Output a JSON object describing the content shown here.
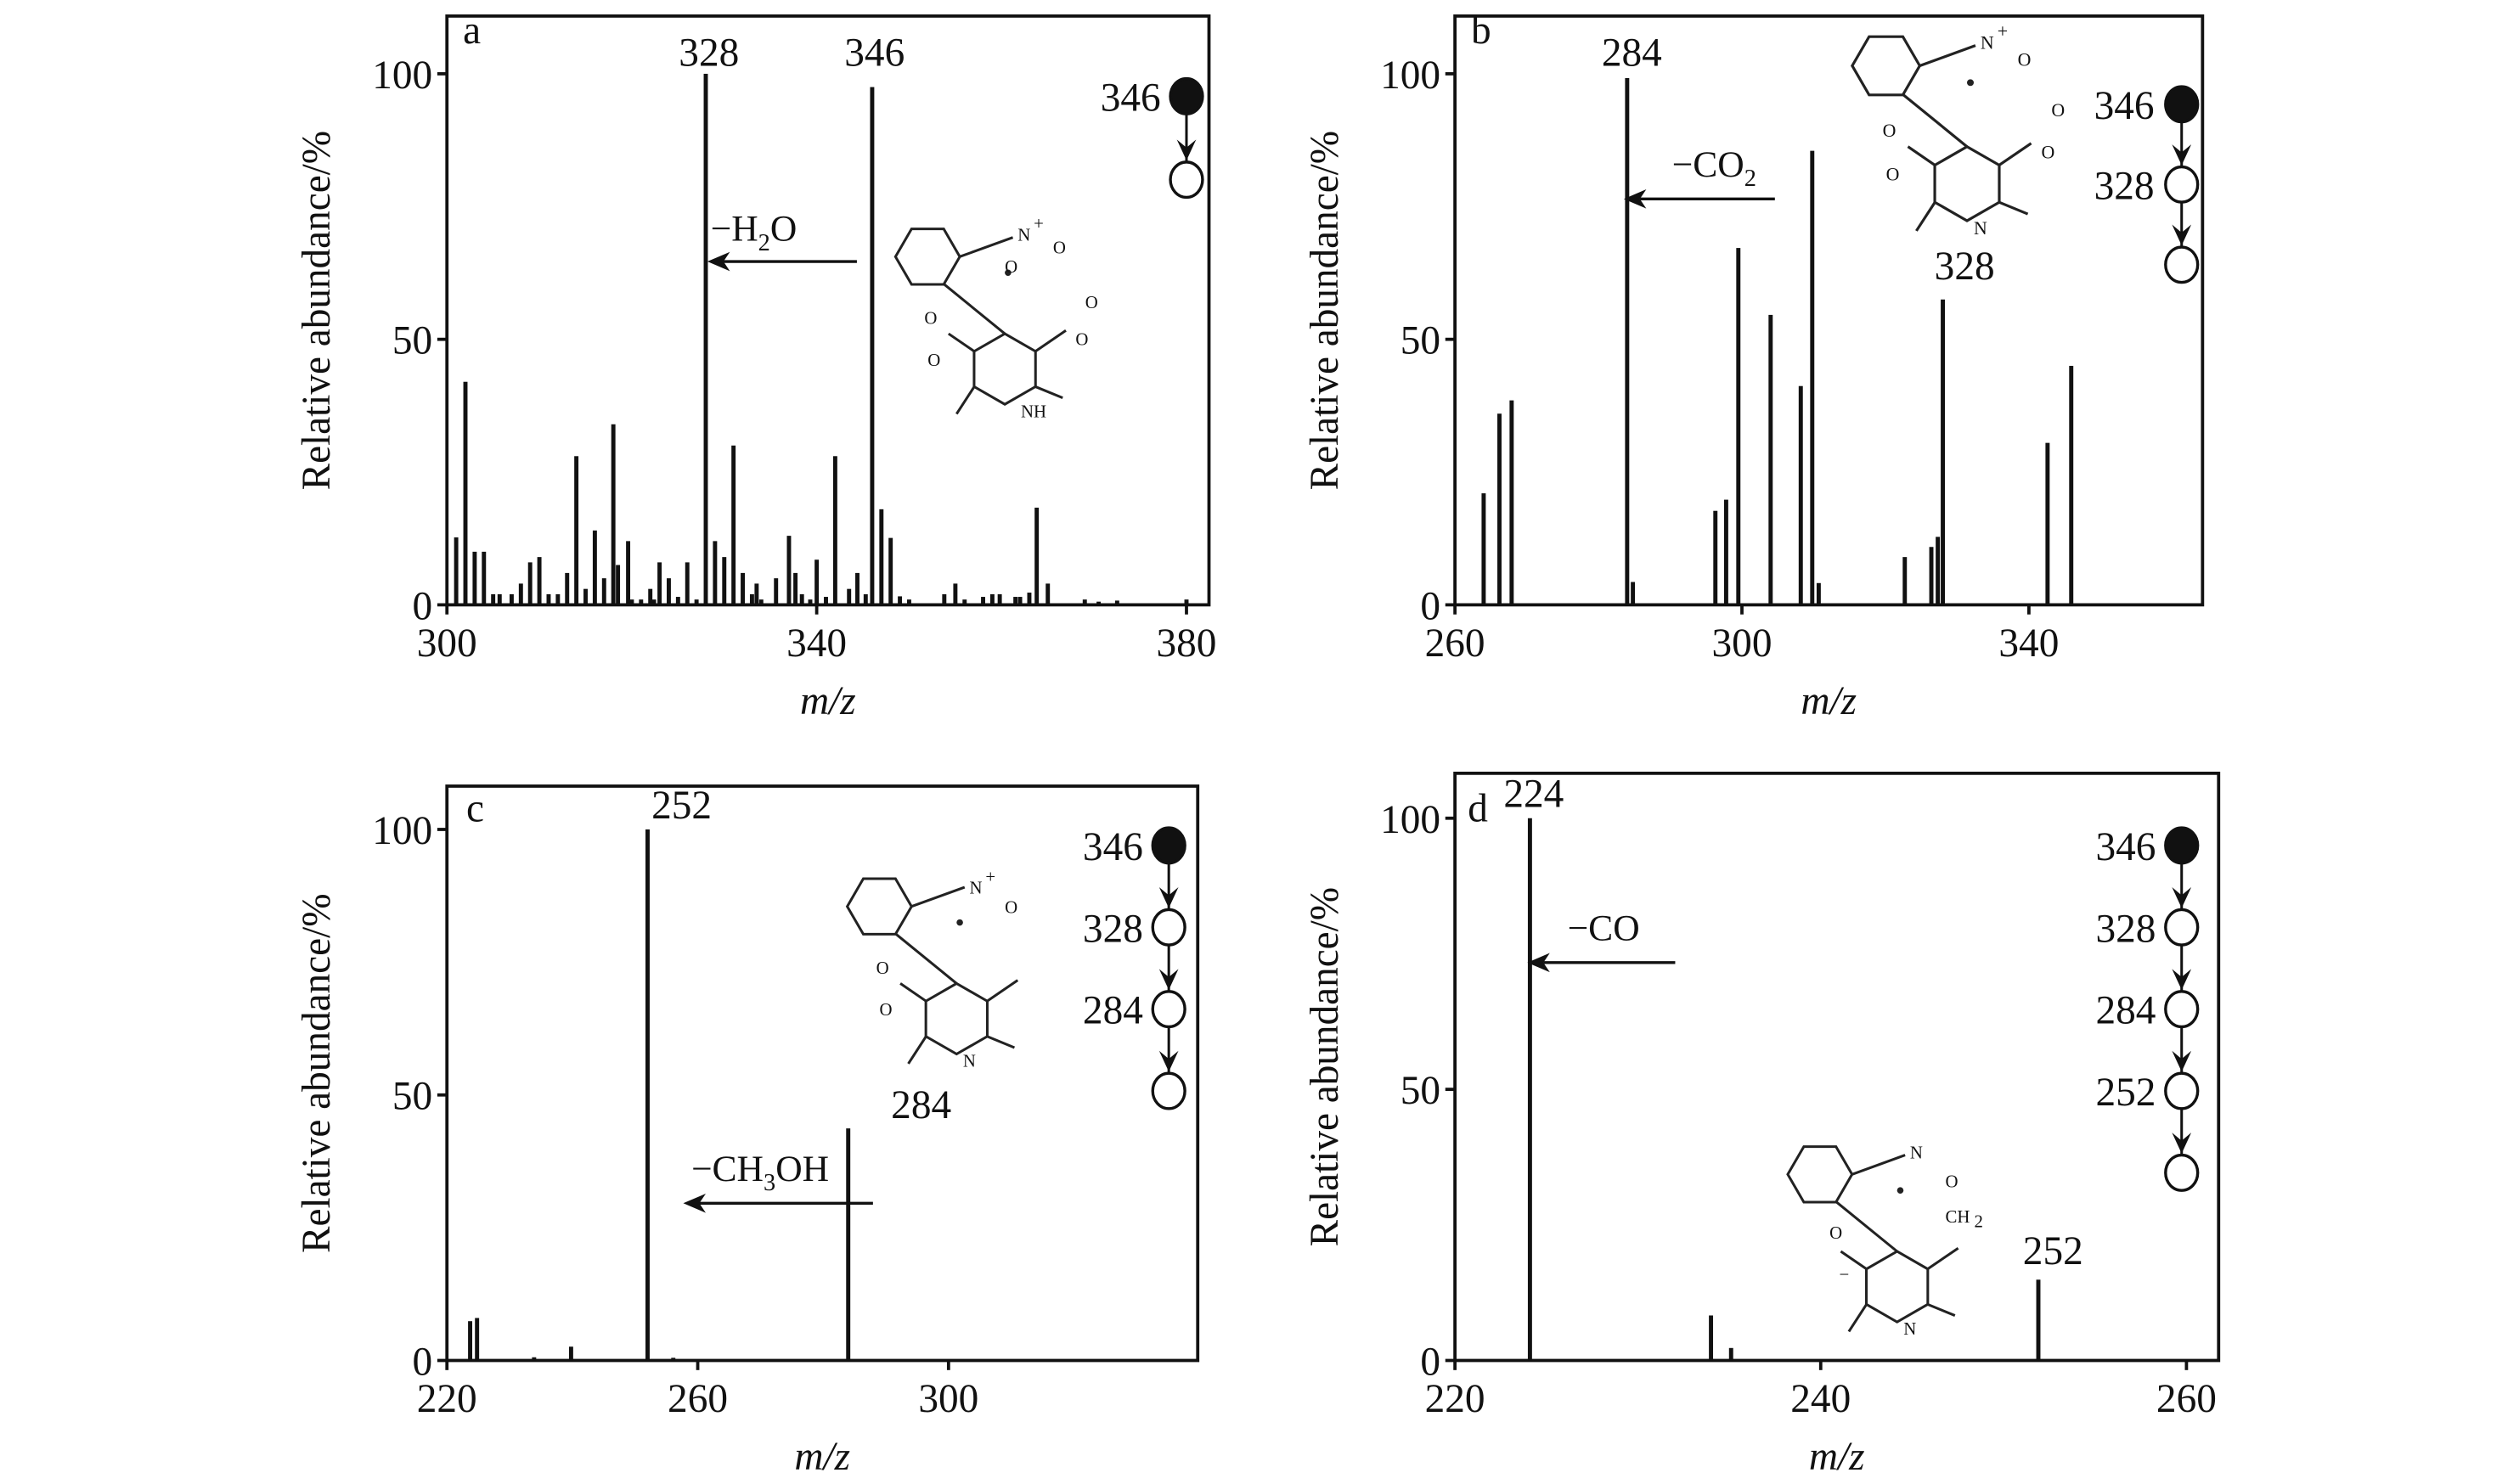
{
  "figure": {
    "ylabel": "Relative abundance/%",
    "xlabel": "m/z",
    "colors": {
      "ink": "#111111",
      "background": "#ffffff"
    }
  },
  "chart_data": [
    {
      "type": "bar",
      "panel": "a",
      "xlim": [
        300,
        382
      ],
      "ylim": [
        0,
        110
      ],
      "xticks": [
        "300",
        "340",
        "380"
      ],
      "xtick_values": [
        300,
        340,
        380
      ],
      "yticks": [
        "0",
        "50",
        "100"
      ],
      "ytick_values": [
        0,
        50,
        100
      ],
      "peaks": [
        [
          301,
          12.7
        ],
        [
          302,
          42
        ],
        [
          303,
          10
        ],
        [
          304,
          10
        ],
        [
          305,
          2
        ],
        [
          305.7,
          2
        ],
        [
          307,
          2
        ],
        [
          308,
          4
        ],
        [
          309,
          8
        ],
        [
          310,
          9
        ],
        [
          311,
          2
        ],
        [
          312,
          2
        ],
        [
          313,
          6
        ],
        [
          314,
          28
        ],
        [
          315,
          3
        ],
        [
          316,
          14
        ],
        [
          317,
          5
        ],
        [
          318,
          34
        ],
        [
          318.5,
          7.5
        ],
        [
          319.6,
          12
        ],
        [
          320,
          1
        ],
        [
          321,
          1
        ],
        [
          322,
          3
        ],
        [
          322.4,
          1
        ],
        [
          323,
          8
        ],
        [
          324,
          5
        ],
        [
          325,
          1.5
        ],
        [
          326,
          8
        ],
        [
          327,
          1
        ],
        [
          328,
          100
        ],
        [
          329,
          12
        ],
        [
          330,
          9
        ],
        [
          331,
          30
        ],
        [
          332,
          6
        ],
        [
          333,
          2
        ],
        [
          333.5,
          4
        ],
        [
          334,
          1
        ],
        [
          335.6,
          5
        ],
        [
          337,
          13
        ],
        [
          337.7,
          6
        ],
        [
          338.4,
          2
        ],
        [
          339.3,
          1
        ],
        [
          340,
          8.5
        ],
        [
          341,
          1.5
        ],
        [
          342,
          28
        ],
        [
          343.5,
          3
        ],
        [
          344.4,
          6
        ],
        [
          345.3,
          2
        ],
        [
          346,
          97.5
        ],
        [
          347,
          18
        ],
        [
          348,
          12.6
        ],
        [
          349,
          1.6
        ],
        [
          350,
          1
        ],
        [
          353.8,
          2
        ],
        [
          355,
          4
        ],
        [
          356,
          1
        ],
        [
          358,
          1.5
        ],
        [
          359,
          2
        ],
        [
          359.8,
          2
        ],
        [
          361.5,
          1.5
        ],
        [
          362,
          1.5
        ],
        [
          363,
          2.3
        ],
        [
          363.8,
          18.3
        ],
        [
          365,
          4
        ],
        [
          369,
          1
        ],
        [
          370.5,
          0.6
        ],
        [
          372.5,
          0.8
        ],
        [
          380,
          1
        ]
      ],
      "peak_labels": [
        {
          "text": "328",
          "mz": 328
        },
        {
          "text": "346",
          "mz": 346
        }
      ],
      "loss": {
        "prefix": "−H",
        "sub": "2",
        "suffix": "O"
      },
      "pathway": [
        "346"
      ],
      "molecule_atoms": [
        "N",
        "+",
        "O",
        "O",
        "O",
        "O",
        "O",
        "O",
        "NH"
      ]
    },
    {
      "type": "bar",
      "panel": "b",
      "xlim": [
        260,
        359
      ],
      "ylim": [
        0,
        110
      ],
      "xticks": [
        "260",
        "300",
        "340"
      ],
      "xtick_values": [
        260,
        300,
        340
      ],
      "yticks": [
        "0",
        "50",
        "100"
      ],
      "ytick_values": [
        0,
        50,
        100
      ],
      "peaks": [
        [
          264,
          21
        ],
        [
          266.2,
          36
        ],
        [
          267.9,
          38.5
        ],
        [
          284,
          99.2
        ],
        [
          284.8,
          4.3
        ],
        [
          296.3,
          17.7
        ],
        [
          297.8,
          19.8
        ],
        [
          299.5,
          67.2
        ],
        [
          304,
          54.6
        ],
        [
          308.2,
          41.2
        ],
        [
          309.8,
          85.5
        ],
        [
          310.7,
          4.1
        ],
        [
          322.7,
          9
        ],
        [
          326.4,
          10.9
        ],
        [
          327.3,
          12.8
        ],
        [
          328,
          57.5
        ],
        [
          342.6,
          30.5
        ],
        [
          345.9,
          45
        ]
      ],
      "peak_labels": [
        {
          "text": "284",
          "mz": 284
        },
        {
          "text": "328",
          "mz": 328
        }
      ],
      "loss": {
        "prefix": "−CO",
        "sub": "2",
        "suffix": ""
      },
      "pathway": [
        "346",
        "328"
      ],
      "molecule_atoms": [
        "N",
        "+",
        "O",
        "O",
        "O",
        "O",
        "O",
        "N"
      ]
    },
    {
      "type": "bar",
      "panel": "c",
      "xlim": [
        220,
        323
      ],
      "ylim": [
        0,
        108
      ],
      "xticks": [
        "220",
        "260",
        "300"
      ],
      "xtick_values": [
        220,
        260,
        300
      ],
      "yticks": [
        "0",
        "50",
        "100"
      ],
      "ytick_values": [
        0,
        50,
        100
      ],
      "peaks": [
        [
          223.7,
          7.4
        ],
        [
          224.8,
          8
        ],
        [
          233.9,
          0.6
        ],
        [
          239.8,
          2.6
        ],
        [
          252,
          100
        ],
        [
          256.1,
          0.5
        ],
        [
          284,
          43.7
        ]
      ],
      "peak_labels": [
        {
          "text": "252",
          "mz": 252
        },
        {
          "text": "284",
          "mz": 284
        }
      ],
      "loss": {
        "prefix": "−CH",
        "sub": "3",
        "suffix": "OH"
      },
      "pathway": [
        "346",
        "328",
        "284"
      ],
      "molecule_atoms": [
        "N",
        "+",
        "O",
        "O",
        "O",
        "N"
      ]
    },
    {
      "type": "bar",
      "panel": "d",
      "xlim": [
        220,
        261
      ],
      "ylim": [
        0,
        108
      ],
      "xticks": [
        "220",
        "240",
        "260"
      ],
      "xtick_values": [
        220,
        240,
        260
      ],
      "yticks": [
        "0",
        "50",
        "100"
      ],
      "ytick_values": [
        0,
        50,
        100
      ],
      "peaks": [
        [
          224.1,
          100
        ],
        [
          234,
          8.3
        ],
        [
          235.1,
          2.3
        ],
        [
          251.9,
          14.9
        ]
      ],
      "peak_labels": [
        {
          "text": "224",
          "mz": 224
        },
        {
          "text": "252",
          "mz": 252
        }
      ],
      "loss": {
        "prefix": "−CO",
        "sub": "",
        "suffix": ""
      },
      "pathway": [
        "346",
        "328",
        "284",
        "252"
      ],
      "molecule_atoms": [
        "N",
        "O",
        "CH",
        "2",
        "O",
        "N",
        "−"
      ]
    }
  ]
}
